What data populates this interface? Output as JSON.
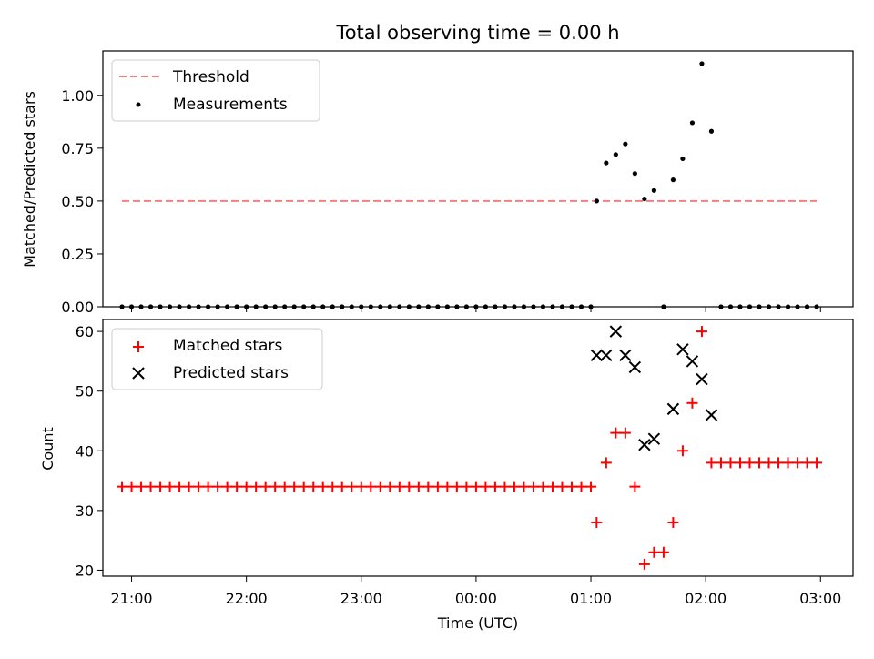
{
  "chart_data": [
    {
      "type": "scatter",
      "title": "Total observing time = 0.00 h",
      "ylabel": "Matched/Predicted stars",
      "xlabel": "",
      "ylim": [
        0,
        1.21
      ],
      "yticks": [
        "0.00",
        "0.25",
        "0.50",
        "0.75",
        "1.00"
      ],
      "xlim_hours_utc": [
        "20:45",
        "03:17"
      ],
      "legend": {
        "placement": "top-left",
        "entries": [
          "Threshold",
          "Measurements"
        ]
      },
      "threshold": {
        "name": "Threshold",
        "value": 0.5,
        "x_start": "20:55",
        "x_end": "02:58",
        "color": "#f08080",
        "style": "dashed"
      },
      "measurements": {
        "name": "Measurements",
        "color": "#000000",
        "points": [
          [
            "20:55",
            0
          ],
          [
            "21:00",
            0
          ],
          [
            "21:05",
            0
          ],
          [
            "21:10",
            0
          ],
          [
            "21:15",
            0
          ],
          [
            "21:20",
            0
          ],
          [
            "21:25",
            0
          ],
          [
            "21:30",
            0
          ],
          [
            "21:35",
            0
          ],
          [
            "21:40",
            0
          ],
          [
            "21:45",
            0
          ],
          [
            "21:50",
            0
          ],
          [
            "21:55",
            0
          ],
          [
            "22:00",
            0
          ],
          [
            "22:05",
            0
          ],
          [
            "22:10",
            0
          ],
          [
            "22:15",
            0
          ],
          [
            "22:20",
            0
          ],
          [
            "22:25",
            0
          ],
          [
            "22:30",
            0
          ],
          [
            "22:35",
            0
          ],
          [
            "22:40",
            0
          ],
          [
            "22:45",
            0
          ],
          [
            "22:50",
            0
          ],
          [
            "22:55",
            0
          ],
          [
            "23:00",
            0
          ],
          [
            "23:05",
            0
          ],
          [
            "23:10",
            0
          ],
          [
            "23:15",
            0
          ],
          [
            "23:20",
            0
          ],
          [
            "23:25",
            0
          ],
          [
            "23:30",
            0
          ],
          [
            "23:35",
            0
          ],
          [
            "23:40",
            0
          ],
          [
            "23:45",
            0
          ],
          [
            "23:50",
            0
          ],
          [
            "23:55",
            0
          ],
          [
            "00:00",
            0
          ],
          [
            "00:05",
            0
          ],
          [
            "00:10",
            0
          ],
          [
            "00:15",
            0
          ],
          [
            "00:20",
            0
          ],
          [
            "00:25",
            0
          ],
          [
            "00:30",
            0
          ],
          [
            "00:35",
            0
          ],
          [
            "00:40",
            0
          ],
          [
            "00:45",
            0
          ],
          [
            "00:50",
            0
          ],
          [
            "00:55",
            0
          ],
          [
            "01:00",
            0
          ],
          [
            "01:03",
            0.5
          ],
          [
            "01:08",
            0.68
          ],
          [
            "01:13",
            0.72
          ],
          [
            "01:18",
            0.77
          ],
          [
            "01:23",
            0.63
          ],
          [
            "01:28",
            0.51
          ],
          [
            "01:33",
            0.55
          ],
          [
            "01:38",
            0
          ],
          [
            "01:43",
            0.6
          ],
          [
            "01:48",
            0.7
          ],
          [
            "01:53",
            0.87
          ],
          [
            "01:58",
            1.15
          ],
          [
            "02:03",
            0.83
          ],
          [
            "02:08",
            0
          ],
          [
            "02:13",
            0
          ],
          [
            "02:18",
            0
          ],
          [
            "02:23",
            0
          ],
          [
            "02:28",
            0
          ],
          [
            "02:33",
            0
          ],
          [
            "02:38",
            0
          ],
          [
            "02:43",
            0
          ],
          [
            "02:48",
            0
          ],
          [
            "02:53",
            0
          ],
          [
            "02:58",
            0
          ]
        ]
      }
    },
    {
      "type": "scatter",
      "title": "",
      "xlabel": "Time (UTC)",
      "ylabel": "Count",
      "ylim": [
        19,
        62
      ],
      "yticks": [
        "20",
        "30",
        "40",
        "50",
        "60"
      ],
      "xticks": [
        "21:00",
        "22:00",
        "23:00",
        "00:00",
        "01:00",
        "02:00",
        "03:00"
      ],
      "xlim_hours_utc": [
        "20:45",
        "03:17"
      ],
      "legend": {
        "placement": "top-left",
        "entries": [
          "Matched stars",
          "Predicted stars"
        ]
      },
      "matched": {
        "name": "Matched stars",
        "color": "#ff0000",
        "marker": "plus",
        "points": [
          [
            "20:55",
            34
          ],
          [
            "21:00",
            34
          ],
          [
            "21:05",
            34
          ],
          [
            "21:10",
            34
          ],
          [
            "21:15",
            34
          ],
          [
            "21:20",
            34
          ],
          [
            "21:25",
            34
          ],
          [
            "21:30",
            34
          ],
          [
            "21:35",
            34
          ],
          [
            "21:40",
            34
          ],
          [
            "21:45",
            34
          ],
          [
            "21:50",
            34
          ],
          [
            "21:55",
            34
          ],
          [
            "22:00",
            34
          ],
          [
            "22:05",
            34
          ],
          [
            "22:10",
            34
          ],
          [
            "22:15",
            34
          ],
          [
            "22:20",
            34
          ],
          [
            "22:25",
            34
          ],
          [
            "22:30",
            34
          ],
          [
            "22:35",
            34
          ],
          [
            "22:40",
            34
          ],
          [
            "22:45",
            34
          ],
          [
            "22:50",
            34
          ],
          [
            "22:55",
            34
          ],
          [
            "23:00",
            34
          ],
          [
            "23:05",
            34
          ],
          [
            "23:10",
            34
          ],
          [
            "23:15",
            34
          ],
          [
            "23:20",
            34
          ],
          [
            "23:25",
            34
          ],
          [
            "23:30",
            34
          ],
          [
            "23:35",
            34
          ],
          [
            "23:40",
            34
          ],
          [
            "23:45",
            34
          ],
          [
            "23:50",
            34
          ],
          [
            "23:55",
            34
          ],
          [
            "00:00",
            34
          ],
          [
            "00:05",
            34
          ],
          [
            "00:10",
            34
          ],
          [
            "00:15",
            34
          ],
          [
            "00:20",
            34
          ],
          [
            "00:25",
            34
          ],
          [
            "00:30",
            34
          ],
          [
            "00:35",
            34
          ],
          [
            "00:40",
            34
          ],
          [
            "00:45",
            34
          ],
          [
            "00:50",
            34
          ],
          [
            "00:55",
            34
          ],
          [
            "01:00",
            34
          ],
          [
            "01:03",
            28
          ],
          [
            "01:08",
            38
          ],
          [
            "01:13",
            43
          ],
          [
            "01:18",
            43
          ],
          [
            "01:23",
            34
          ],
          [
            "01:28",
            21
          ],
          [
            "01:33",
            23
          ],
          [
            "01:38",
            23
          ],
          [
            "01:43",
            28
          ],
          [
            "01:48",
            40
          ],
          [
            "01:53",
            48
          ],
          [
            "01:58",
            60
          ],
          [
            "02:03",
            38
          ],
          [
            "02:08",
            38
          ],
          [
            "02:13",
            38
          ],
          [
            "02:18",
            38
          ],
          [
            "02:23",
            38
          ],
          [
            "02:28",
            38
          ],
          [
            "02:33",
            38
          ],
          [
            "02:38",
            38
          ],
          [
            "02:43",
            38
          ],
          [
            "02:48",
            38
          ],
          [
            "02:53",
            38
          ],
          [
            "02:58",
            38
          ]
        ]
      },
      "predicted": {
        "name": "Predicted stars",
        "color": "#000000",
        "marker": "x",
        "points": [
          [
            "01:03",
            56
          ],
          [
            "01:08",
            56
          ],
          [
            "01:13",
            60
          ],
          [
            "01:18",
            56
          ],
          [
            "01:23",
            54
          ],
          [
            "01:28",
            41
          ],
          [
            "01:33",
            42
          ],
          [
            "01:43",
            47
          ],
          [
            "01:48",
            57
          ],
          [
            "01:53",
            55
          ],
          [
            "01:58",
            52
          ],
          [
            "02:03",
            46
          ]
        ]
      }
    }
  ]
}
